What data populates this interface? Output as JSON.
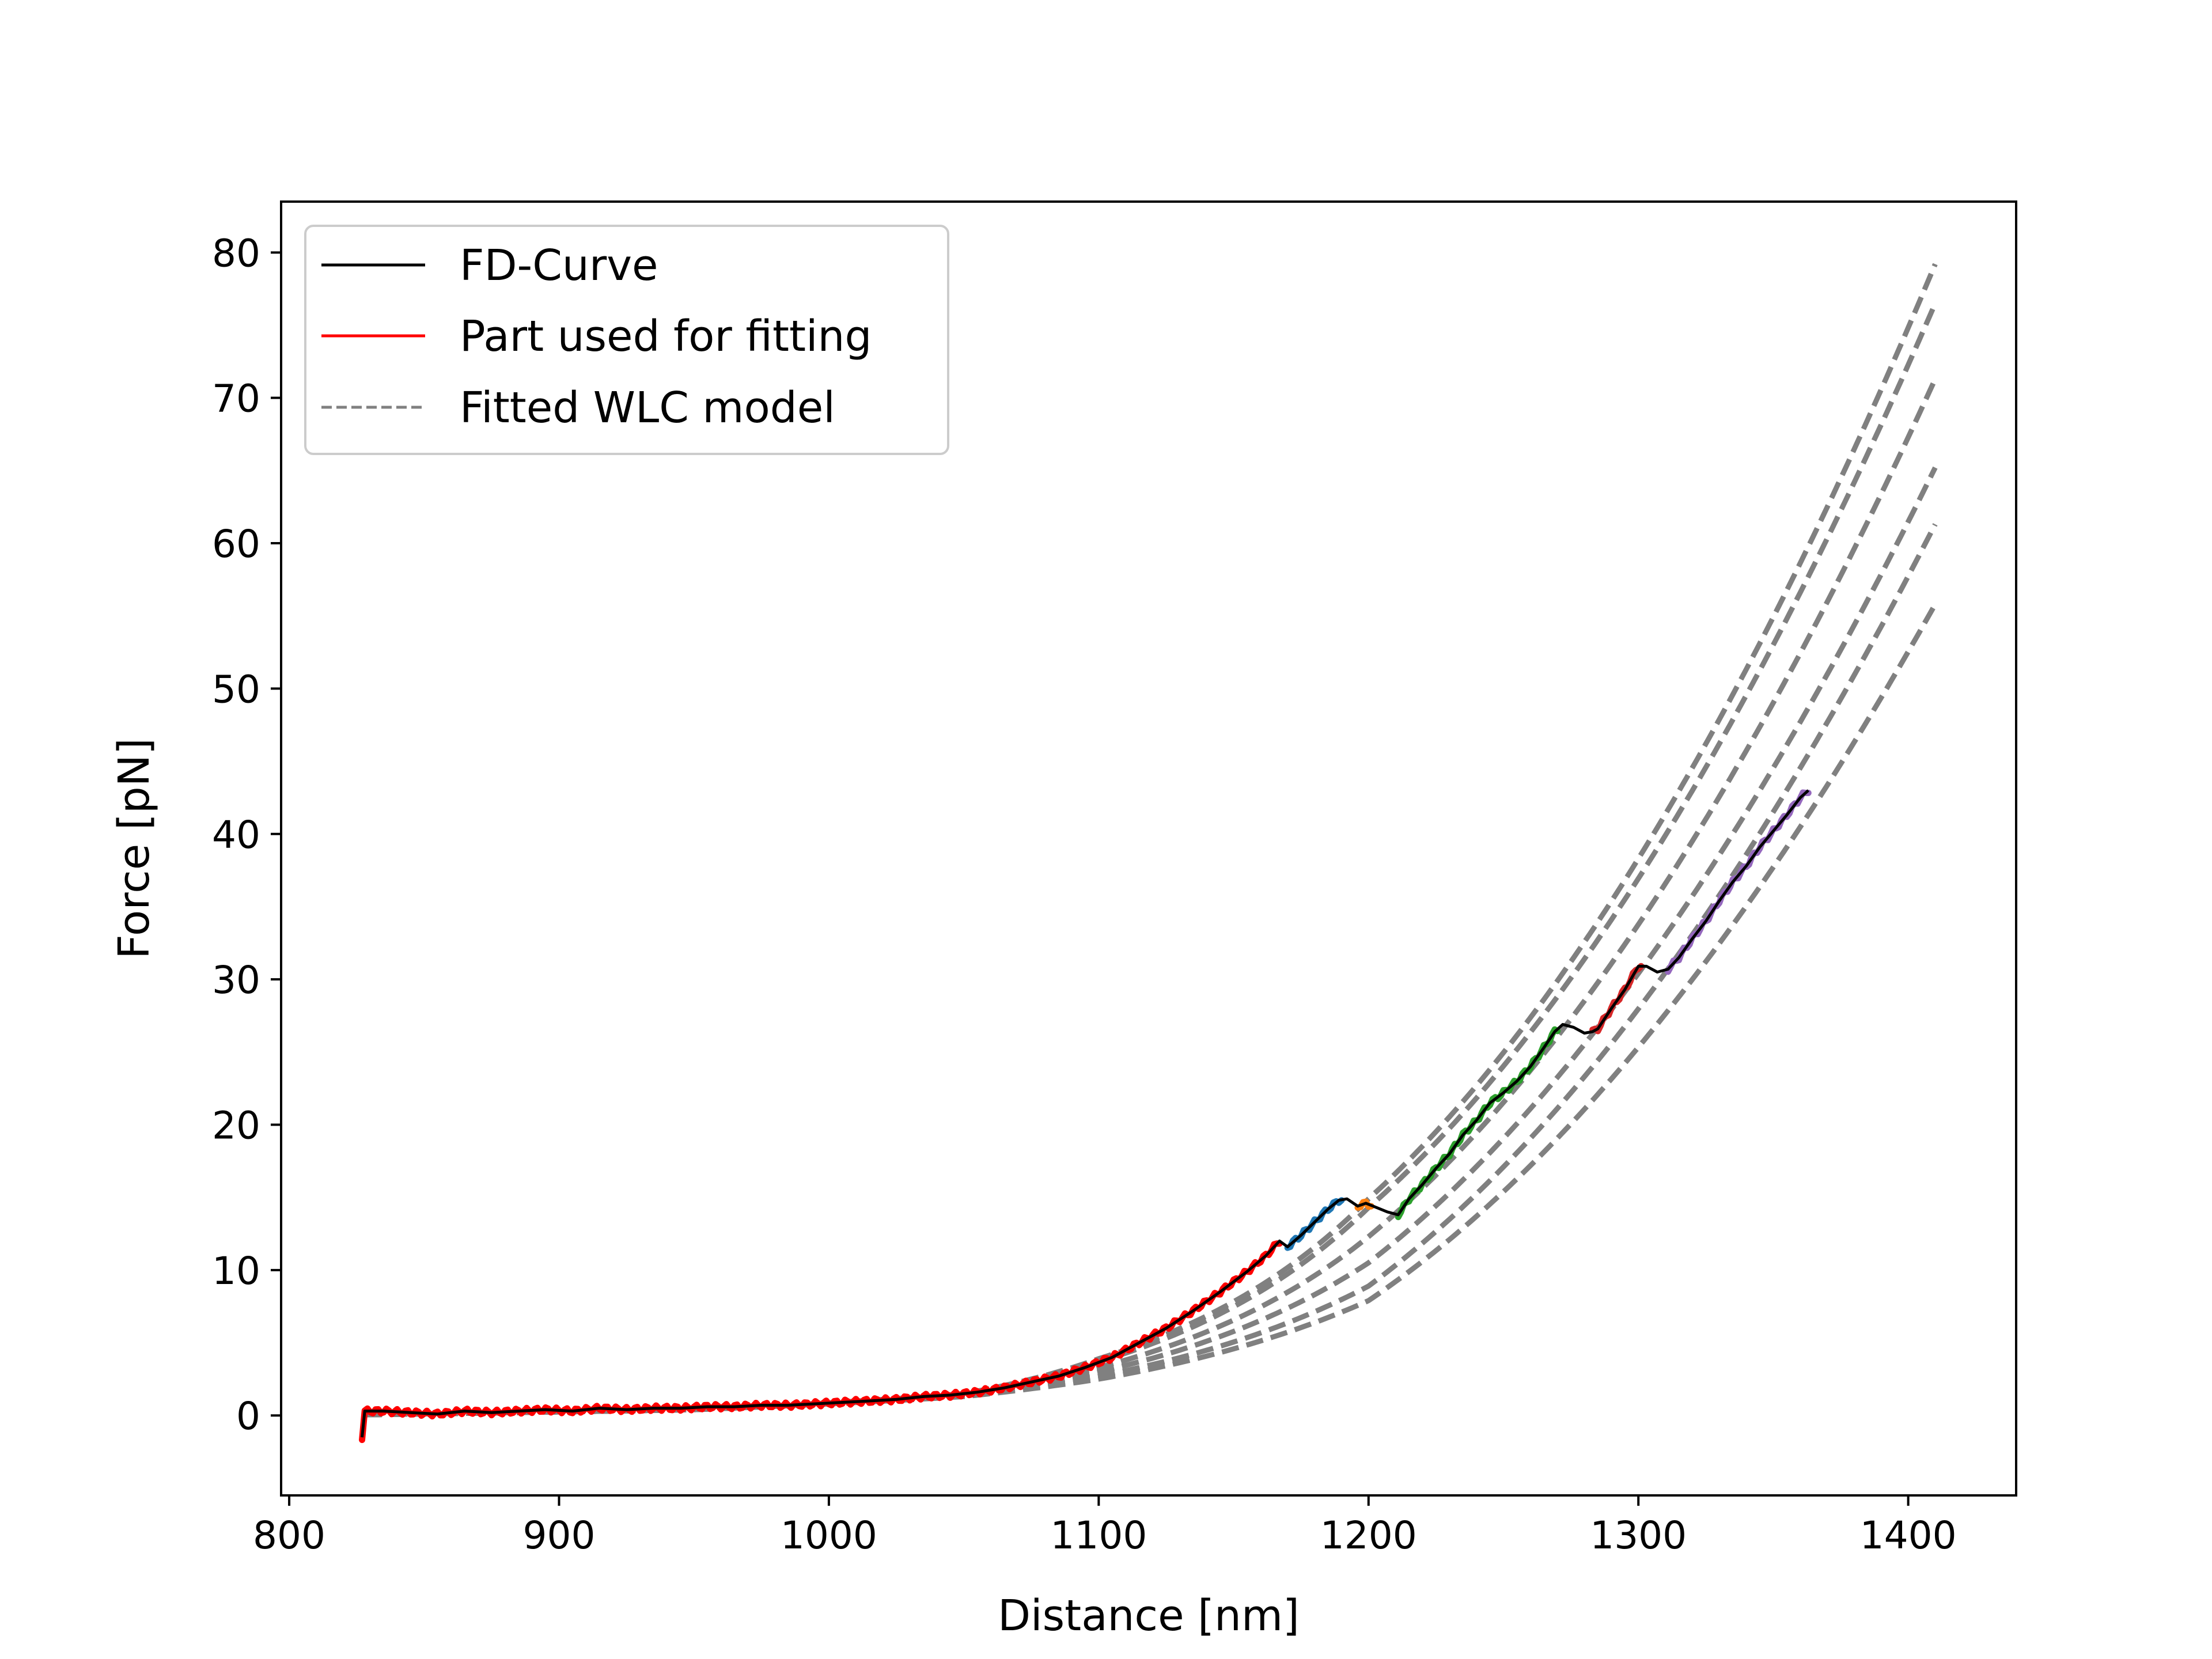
{
  "chart_data": {
    "type": "line",
    "title": "",
    "xlabel": "Distance [nm]",
    "ylabel": "Force [pN]",
    "xlim": [
      797,
      1440
    ],
    "ylim": [
      -5.5,
      83.5
    ],
    "xticks": [
      800,
      900,
      1000,
      1100,
      1200,
      1300,
      1400
    ],
    "yticks": [
      0,
      10,
      20,
      30,
      40,
      50,
      60,
      70,
      80
    ],
    "grid": false,
    "legend_position": "top-left",
    "legend": [
      {
        "label": "FD-Curve",
        "style": "solid",
        "color": "#000000"
      },
      {
        "label": "Part used for fitting",
        "style": "solid",
        "color": "#ff0000"
      },
      {
        "label": "Fitted WLC model",
        "style": "dashed",
        "color": "#808080"
      }
    ],
    "fd_curve": {
      "name": "FD-Curve",
      "color": "#000000",
      "points": [
        [
          827,
          -1.5
        ],
        [
          828,
          0.3
        ],
        [
          835,
          0.3
        ],
        [
          845,
          0.2
        ],
        [
          855,
          0.1
        ],
        [
          865,
          0.3
        ],
        [
          875,
          0.2
        ],
        [
          885,
          0.3
        ],
        [
          895,
          0.4
        ],
        [
          905,
          0.3
        ],
        [
          915,
          0.5
        ],
        [
          925,
          0.4
        ],
        [
          935,
          0.5
        ],
        [
          945,
          0.5
        ],
        [
          955,
          0.6
        ],
        [
          965,
          0.6
        ],
        [
          975,
          0.7
        ],
        [
          985,
          0.7
        ],
        [
          995,
          0.8
        ],
        [
          1005,
          0.9
        ],
        [
          1015,
          1.0
        ],
        [
          1025,
          1.1
        ],
        [
          1035,
          1.3
        ],
        [
          1045,
          1.4
        ],
        [
          1055,
          1.6
        ],
        [
          1065,
          1.9
        ],
        [
          1075,
          2.3
        ],
        [
          1085,
          2.7
        ],
        [
          1095,
          3.3
        ],
        [
          1105,
          4.0
        ],
        [
          1115,
          5.0
        ],
        [
          1125,
          6.0
        ],
        [
          1135,
          7.2
        ],
        [
          1145,
          8.5
        ],
        [
          1155,
          9.9
        ],
        [
          1162,
          11.0
        ],
        [
          1167,
          12.0
        ],
        [
          1170,
          11.6
        ],
        [
          1175,
          12.4
        ],
        [
          1180,
          13.3
        ],
        [
          1185,
          14.2
        ],
        [
          1189,
          14.8
        ],
        [
          1192,
          14.9
        ],
        [
          1196,
          14.4
        ],
        [
          1199,
          14.6
        ],
        [
          1203,
          14.3
        ],
        [
          1207,
          14.0
        ],
        [
          1211,
          13.8
        ],
        [
          1215,
          14.9
        ],
        [
          1220,
          15.9
        ],
        [
          1225,
          17.0
        ],
        [
          1230,
          18.0
        ],
        [
          1235,
          19.3
        ],
        [
          1240,
          20.3
        ],
        [
          1245,
          21.5
        ],
        [
          1250,
          22.2
        ],
        [
          1255,
          23.0
        ],
        [
          1260,
          24.0
        ],
        [
          1265,
          25.3
        ],
        [
          1269,
          26.4
        ],
        [
          1272,
          26.9
        ],
        [
          1276,
          26.7
        ],
        [
          1280,
          26.3
        ],
        [
          1283,
          26.4
        ],
        [
          1285,
          26.6
        ],
        [
          1290,
          28.0
        ],
        [
          1295,
          29.3
        ],
        [
          1300,
          30.9
        ],
        [
          1303,
          30.9
        ],
        [
          1307,
          30.5
        ],
        [
          1311,
          30.7
        ],
        [
          1315,
          31.5
        ],
        [
          1320,
          32.8
        ],
        [
          1325,
          34.0
        ],
        [
          1330,
          35.4
        ],
        [
          1335,
          36.7
        ],
        [
          1340,
          37.8
        ],
        [
          1345,
          39.1
        ],
        [
          1350,
          40.2
        ],
        [
          1355,
          41.3
        ],
        [
          1360,
          42.5
        ],
        [
          1363,
          43.0
        ]
      ]
    },
    "fitted_segments": [
      {
        "name": "Part used for fitting",
        "color": "#ff0000",
        "x_range": [
          827,
          1167
        ]
      },
      {
        "name": "",
        "color": "#1f77b4",
        "x_range": [
          1170,
          1190
        ]
      },
      {
        "name": "",
        "color": "#ff7f0e",
        "x_range": [
          1196,
          1201
        ]
      },
      {
        "name": "",
        "color": "#2ca02c",
        "x_range": [
          1211,
          1270
        ]
      },
      {
        "name": "",
        "color": "#d62728",
        "x_range": [
          1283,
          1301
        ]
      },
      {
        "name": "",
        "color": "#9467bd",
        "x_range": [
          1311,
          1363
        ]
      }
    ],
    "wlc_models": {
      "name": "Fitted WLC model",
      "color": "#808080",
      "style": "dashed",
      "x_range": [
        828,
        1410
      ],
      "end_forces": [
        79.2,
        76.5,
        71.3,
        65.2,
        61.3,
        55.8
      ],
      "mid_forces_at_1200": [
        14.9,
        14.3,
        12.3,
        10.5,
        8.9,
        7.9
      ],
      "forces_at_1100": [
        3.9,
        3.7,
        3.3,
        3.0,
        2.7,
        2.5
      ]
    }
  }
}
